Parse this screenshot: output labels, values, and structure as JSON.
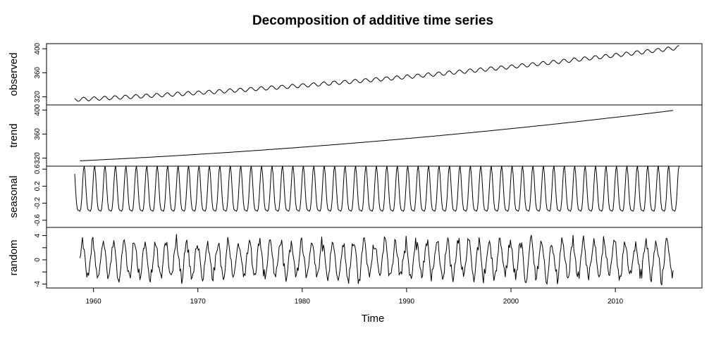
{
  "chart_data": {
    "type": "line",
    "title": "Decomposition of additive time series",
    "xlabel": "Time",
    "x_range": [
      1955.5,
      2018.3
    ],
    "x_ticks": [
      1960,
      1970,
      1980,
      1990,
      2000,
      2010
    ],
    "series_start": 1958.2,
    "series_end": 2016.1,
    "frequency": 12,
    "grid": false,
    "line_color": "#000000",
    "panels": [
      {
        "key": "observed",
        "ylabel": "observed",
        "ylim": [
          310,
          405
        ],
        "yticks": [
          320,
          360,
          400
        ],
        "tick_labels": [
          "320",
          "360",
          "400"
        ],
        "start": 315.3,
        "end": 402,
        "seasonal_amplitude": 3.2,
        "noise": 0.25
      },
      {
        "key": "trend",
        "ylabel": "trend",
        "ylim": [
          310,
          405
        ],
        "yticks": [
          320,
          360,
          400
        ],
        "tick_labels": [
          "320",
          "360",
          "400"
        ],
        "start": 315,
        "end": 400.5,
        "seasonal_amplitude": 0,
        "noise": 0.1
      },
      {
        "key": "seasonal",
        "ylabel": "seasonal",
        "ylim": [
          -0.72,
          0.62
        ],
        "yticks": [
          -0.6,
          -0.2,
          0.2,
          0.6
        ],
        "tick_labels": [
          "-0.6",
          "-0.2",
          "0.2",
          "0.6"
        ],
        "amplitude": 0.62
      },
      {
        "key": "random",
        "ylabel": "random",
        "ylim": [
          -4.3,
          5.0
        ],
        "yticks": [
          -4,
          0,
          4
        ],
        "tick_labels": [
          "-4",
          "0",
          "4"
        ],
        "minor_ticks": [
          -2,
          2
        ],
        "range": [
          -4.2,
          4.9
        ],
        "typical_amplitude": 2.8
      }
    ]
  }
}
